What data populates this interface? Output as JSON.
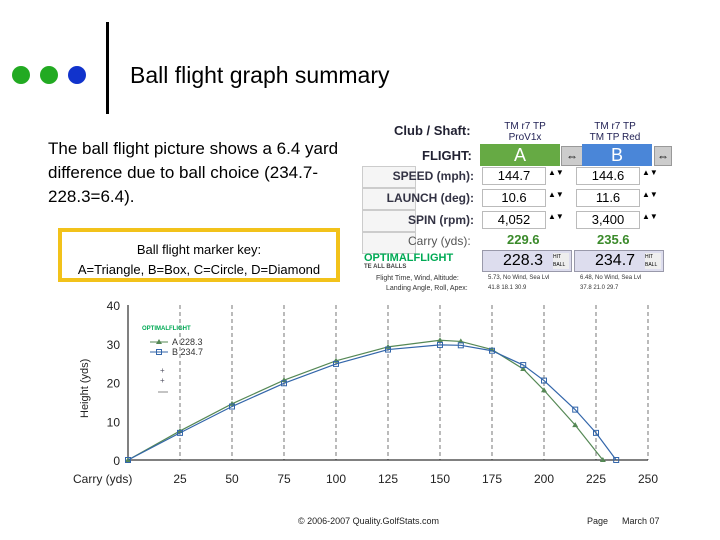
{
  "slide": {
    "title": "Ball flight graph summary",
    "description": "The ball flight picture shows a 6.4 yard difference due to ball choice (234.7-228.3=6.4).",
    "key_line1": "Ball flight marker key:",
    "key_line2": "A=Triangle, B=Box, C=Circle, D=Diamond",
    "footer_copyright": "© 2006-2007 Quality.GolfStats.com",
    "footer_page": "Page",
    "footer_date": "March 07",
    "dot_colors": [
      "#22aa22",
      "#22aa22",
      "#1133cc"
    ]
  },
  "panel": {
    "club_shaft_label": "Club / Shaft:",
    "flight_label": "FLIGHT:",
    "colA_line1": "TM r7 TP",
    "colA_line2": "ProV1x",
    "colB_line1": "TM r7 TP",
    "colB_line2": "TM TP Red",
    "colA_letter": "A",
    "colB_letter": "B",
    "rows": [
      {
        "label": "SPEED (mph):",
        "a": "144.7",
        "b": "144.6"
      },
      {
        "label": "LAUNCH (deg):",
        "a": "10.6",
        "b": "11.6"
      },
      {
        "label": "SPIN (rpm):",
        "a": "4,052",
        "b": "3,400"
      }
    ],
    "carry_label": "Carry (yds):",
    "carry_a": "229.6",
    "carry_b": "235.6",
    "total_a": "228.3",
    "total_b": "234.7",
    "hit_ball": "HIT BALL",
    "logo": "OPTIMALFLIGHT",
    "logo_sub": "TE ALL BALLS",
    "info_line1": "Flight Time, Wind, Altitude:",
    "info_line2": "Landing Angle, Roll, Apex:",
    "info_a1": "5.73, No Wind, Sea Lvl",
    "info_b1": "6.48, No Wind, Sea Lvl",
    "info_a2": "41.8  18.1  30.9",
    "info_b2": "37.8  21.0  29.7",
    "accent_green": "#66aa44",
    "accent_blue": "#4a86d8"
  },
  "chart_data": {
    "type": "line",
    "xlabel": "Carry (yds)",
    "ylabel": "Height (yds)",
    "xlim": [
      0,
      250
    ],
    "ylim": [
      0,
      40
    ],
    "xticks": [
      25,
      50,
      75,
      100,
      125,
      150,
      175,
      200,
      225,
      250
    ],
    "yticks": [
      0,
      10,
      20,
      30,
      40
    ],
    "grid": "vertical dashed",
    "legend": {
      "logo": "OPTIMALFLIGHT",
      "entries": [
        {
          "marker": "triangle",
          "text": "A  228.3"
        },
        {
          "marker": "box",
          "text": "B  234.7"
        }
      ]
    },
    "series": [
      {
        "name": "A",
        "color": "#558855",
        "marker": "triangle",
        "x": [
          0,
          25,
          50,
          75,
          100,
          125,
          150,
          160,
          175,
          190,
          200,
          215,
          228.3
        ],
        "y": [
          0,
          7.5,
          14.5,
          20.6,
          25.6,
          29.2,
          30.9,
          30.6,
          28.5,
          23.5,
          18.0,
          9.0,
          0
        ]
      },
      {
        "name": "B",
        "color": "#3366aa",
        "marker": "box",
        "x": [
          0,
          25,
          50,
          75,
          100,
          125,
          150,
          160,
          175,
          190,
          200,
          215,
          225,
          234.7
        ],
        "y": [
          0,
          7.0,
          13.8,
          19.8,
          24.8,
          28.5,
          29.7,
          29.6,
          28.2,
          24.5,
          20.5,
          13.0,
          7.0,
          0
        ]
      }
    ]
  }
}
